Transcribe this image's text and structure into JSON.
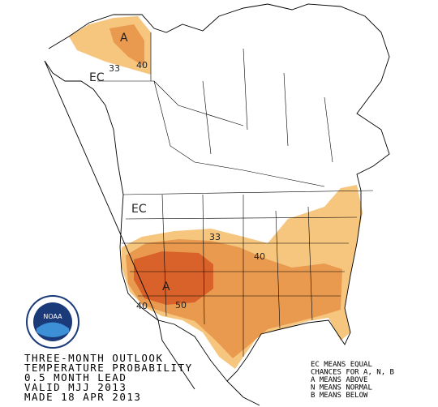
{
  "map": {
    "labels": {
      "alaska_category": "A",
      "alaska_contour_33": "33",
      "alaska_contour_40": "40",
      "west_ec": "EC",
      "nw_ec": "EC",
      "us_contour_33": "33",
      "us_contour_40_east": "40",
      "us_category": "A",
      "us_contour_40_sw": "40",
      "us_contour_50": "50"
    },
    "logo": "NOAA",
    "title_lines": [
      "THREE-MONTH OUTLOOK",
      "TEMPERATURE PROBABILITY",
      "0.5 MONTH LEAD",
      "VALID MJJ 2013",
      "MADE 18 APR 2013"
    ],
    "legend_lines": [
      "EC MEANS EQUAL",
      "CHANCES FOR A, N, B",
      "A MEANS ABOVE",
      "N MEANS NORMAL",
      "B MEANS BELOW"
    ]
  }
}
